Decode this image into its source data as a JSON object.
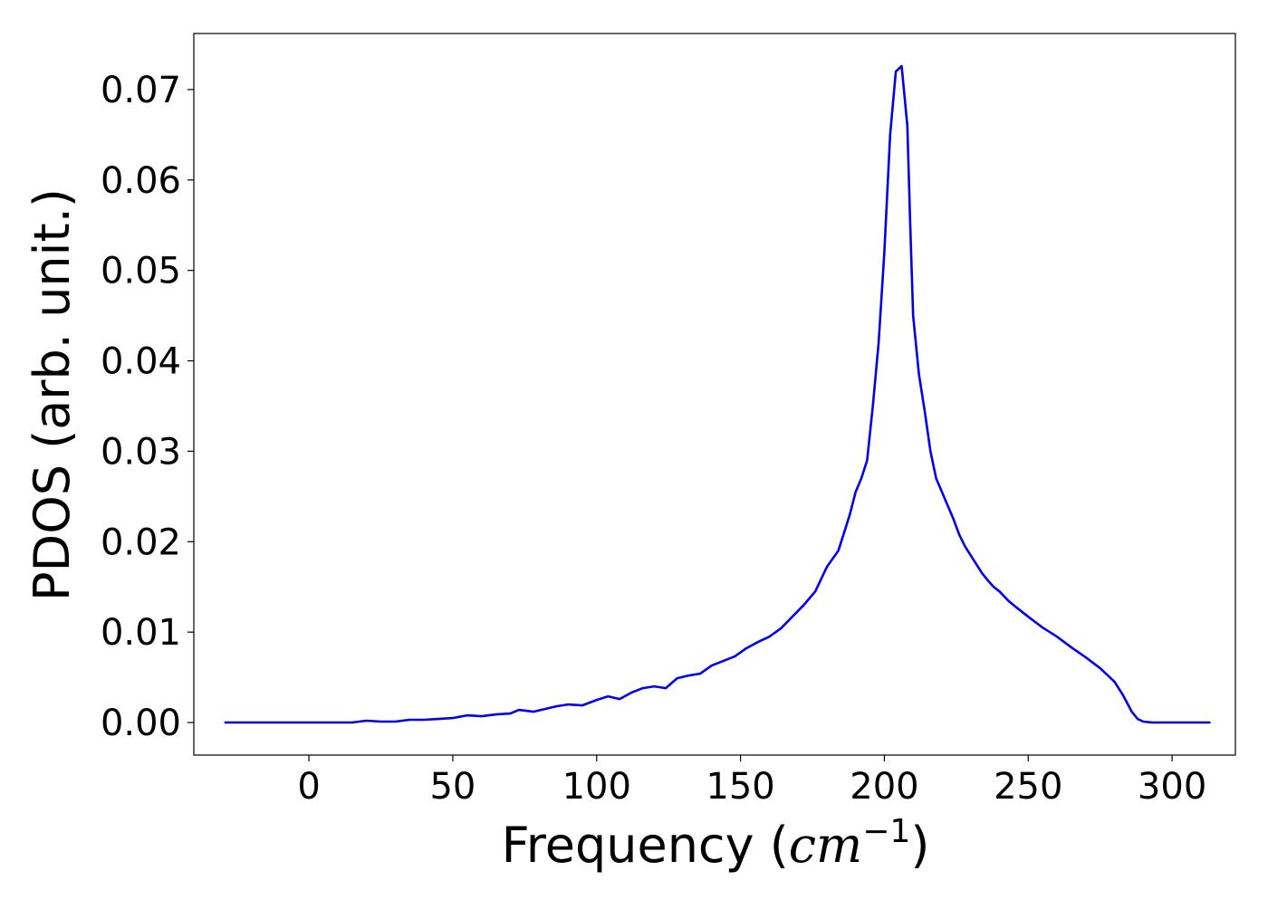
{
  "chart_data": {
    "type": "line",
    "title": "",
    "xlabel_prefix": "Frequency (",
    "xlabel_unit": "cm",
    "xlabel_exponent": "−1",
    "xlabel_suffix": ")",
    "ylabel": "PDOS (arb. unit.)",
    "xlim": [
      -40,
      322
    ],
    "ylim": [
      -0.0036,
      0.0762
    ],
    "xticks": [
      0,
      50,
      100,
      150,
      200,
      250,
      300
    ],
    "xtick_labels": [
      "0",
      "50",
      "100",
      "150",
      "200",
      "250",
      "300"
    ],
    "yticks": [
      0.0,
      0.01,
      0.02,
      0.03,
      0.04,
      0.05,
      0.06,
      0.07
    ],
    "ytick_labels": [
      "0.00",
      "0.01",
      "0.02",
      "0.03",
      "0.04",
      "0.05",
      "0.06",
      "0.07"
    ],
    "grid": false,
    "legend": false,
    "series": [
      {
        "color": "#0000ee",
        "x": [
          -29,
          -10,
          0,
          10,
          15,
          20,
          25,
          30,
          35,
          40,
          45,
          50,
          55,
          60,
          65,
          70,
          73,
          78,
          82,
          86,
          90,
          95,
          100,
          104,
          108,
          112,
          116,
          120,
          124,
          128,
          132,
          136,
          140,
          144,
          148,
          152,
          156,
          160,
          164,
          168,
          172,
          176,
          180,
          184,
          186,
          188,
          190,
          192,
          194,
          196,
          198,
          200,
          202,
          204,
          206,
          208,
          209,
          210,
          212,
          214,
          216,
          218,
          220,
          222,
          224,
          226,
          228,
          230,
          232,
          234,
          236,
          238,
          240,
          243,
          246,
          250,
          255,
          260,
          265,
          270,
          275,
          280,
          283,
          286,
          288,
          290,
          293,
          300,
          313
        ],
        "y": [
          0.0,
          0.0,
          0.0,
          0.0,
          0.0,
          0.0002,
          0.0001,
          0.0001,
          0.0003,
          0.0003,
          0.0004,
          0.0005,
          0.0008,
          0.0007,
          0.0009,
          0.001,
          0.0014,
          0.0012,
          0.0015,
          0.0018,
          0.002,
          0.0019,
          0.0025,
          0.0029,
          0.0026,
          0.0033,
          0.0038,
          0.004,
          0.0038,
          0.0049,
          0.0052,
          0.0054,
          0.0063,
          0.0068,
          0.0073,
          0.0082,
          0.0089,
          0.0095,
          0.0104,
          0.0117,
          0.013,
          0.0145,
          0.0172,
          0.019,
          0.021,
          0.023,
          0.0255,
          0.027,
          0.029,
          0.035,
          0.042,
          0.052,
          0.065,
          0.072,
          0.0726,
          0.066,
          0.055,
          0.045,
          0.0385,
          0.0345,
          0.03,
          0.027,
          0.0255,
          0.024,
          0.0225,
          0.0208,
          0.0195,
          0.0185,
          0.0175,
          0.0165,
          0.0157,
          0.015,
          0.0145,
          0.0135,
          0.0127,
          0.0117,
          0.0105,
          0.0095,
          0.0083,
          0.0072,
          0.006,
          0.0045,
          0.003,
          0.0012,
          0.0004,
          0.0001,
          0.0,
          0.0,
          0.0
        ]
      }
    ]
  }
}
